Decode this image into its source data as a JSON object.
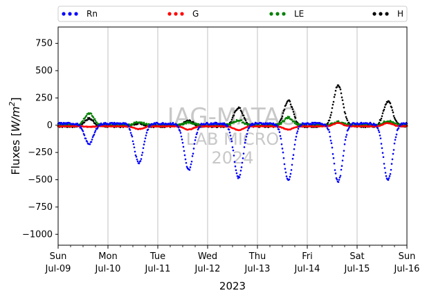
{
  "chart_data": {
    "type": "scatter",
    "title": "",
    "ylabel": "Fluxes [W/m²]",
    "ylabel_plain": "Fluxes [",
    "ylabel_unit": "W/m",
    "ylabel_sup": "2",
    "ylabel_close": "]",
    "xlabel": "2023",
    "ylim": [
      -1100,
      900
    ],
    "yticks": [
      750,
      500,
      250,
      0,
      -250,
      -500,
      -750,
      -1000
    ],
    "ytick_labels": [
      "750",
      "500",
      "250",
      "0",
      "−250",
      "−500",
      "−750",
      "−1000"
    ],
    "xlim_days": [
      0,
      7
    ],
    "xticks": [
      {
        "day": 0,
        "line1": "Sun",
        "line2": "Jul-09"
      },
      {
        "day": 1,
        "line1": "Mon",
        "line2": "Jul-10"
      },
      {
        "day": 2,
        "line1": "Tue",
        "line2": "Jul-11"
      },
      {
        "day": 3,
        "line1": "Wed",
        "line2": "Jul-12"
      },
      {
        "day": 4,
        "line1": "Thu",
        "line2": "Jul-13"
      },
      {
        "day": 5,
        "line1": "Fri",
        "line2": "Jul-14"
      },
      {
        "day": 6,
        "line1": "Sat",
        "line2": "Jul-15"
      },
      {
        "day": 7,
        "line1": "Sun",
        "line2": "Jul-16"
      }
    ],
    "grid": "vertical",
    "legend_position": "top",
    "watermark": [
      "IAG-MATAO",
      "LAB MICRO",
      "2024"
    ],
    "series": [
      {
        "name": "Rn",
        "color": "#0000ff",
        "night": 15,
        "night_min": 10,
        "day_peaks": [
          -170,
          -345,
          -410,
          -480,
          -510,
          -520,
          -505
        ]
      },
      {
        "name": "G",
        "color": "#ff0000",
        "night": -10,
        "day_peaks": [
          -15,
          -35,
          -40,
          -45,
          -40,
          20,
          20
        ]
      },
      {
        "name": "LE",
        "color": "#008000",
        "night": 0,
        "day_peaks": [
          110,
          30,
          25,
          45,
          70,
          30,
          40
        ]
      },
      {
        "name": "H",
        "color": "#000000",
        "night": -10,
        "day_peaks": [
          60,
          20,
          40,
          160,
          225,
          370,
          220
        ]
      }
    ]
  }
}
